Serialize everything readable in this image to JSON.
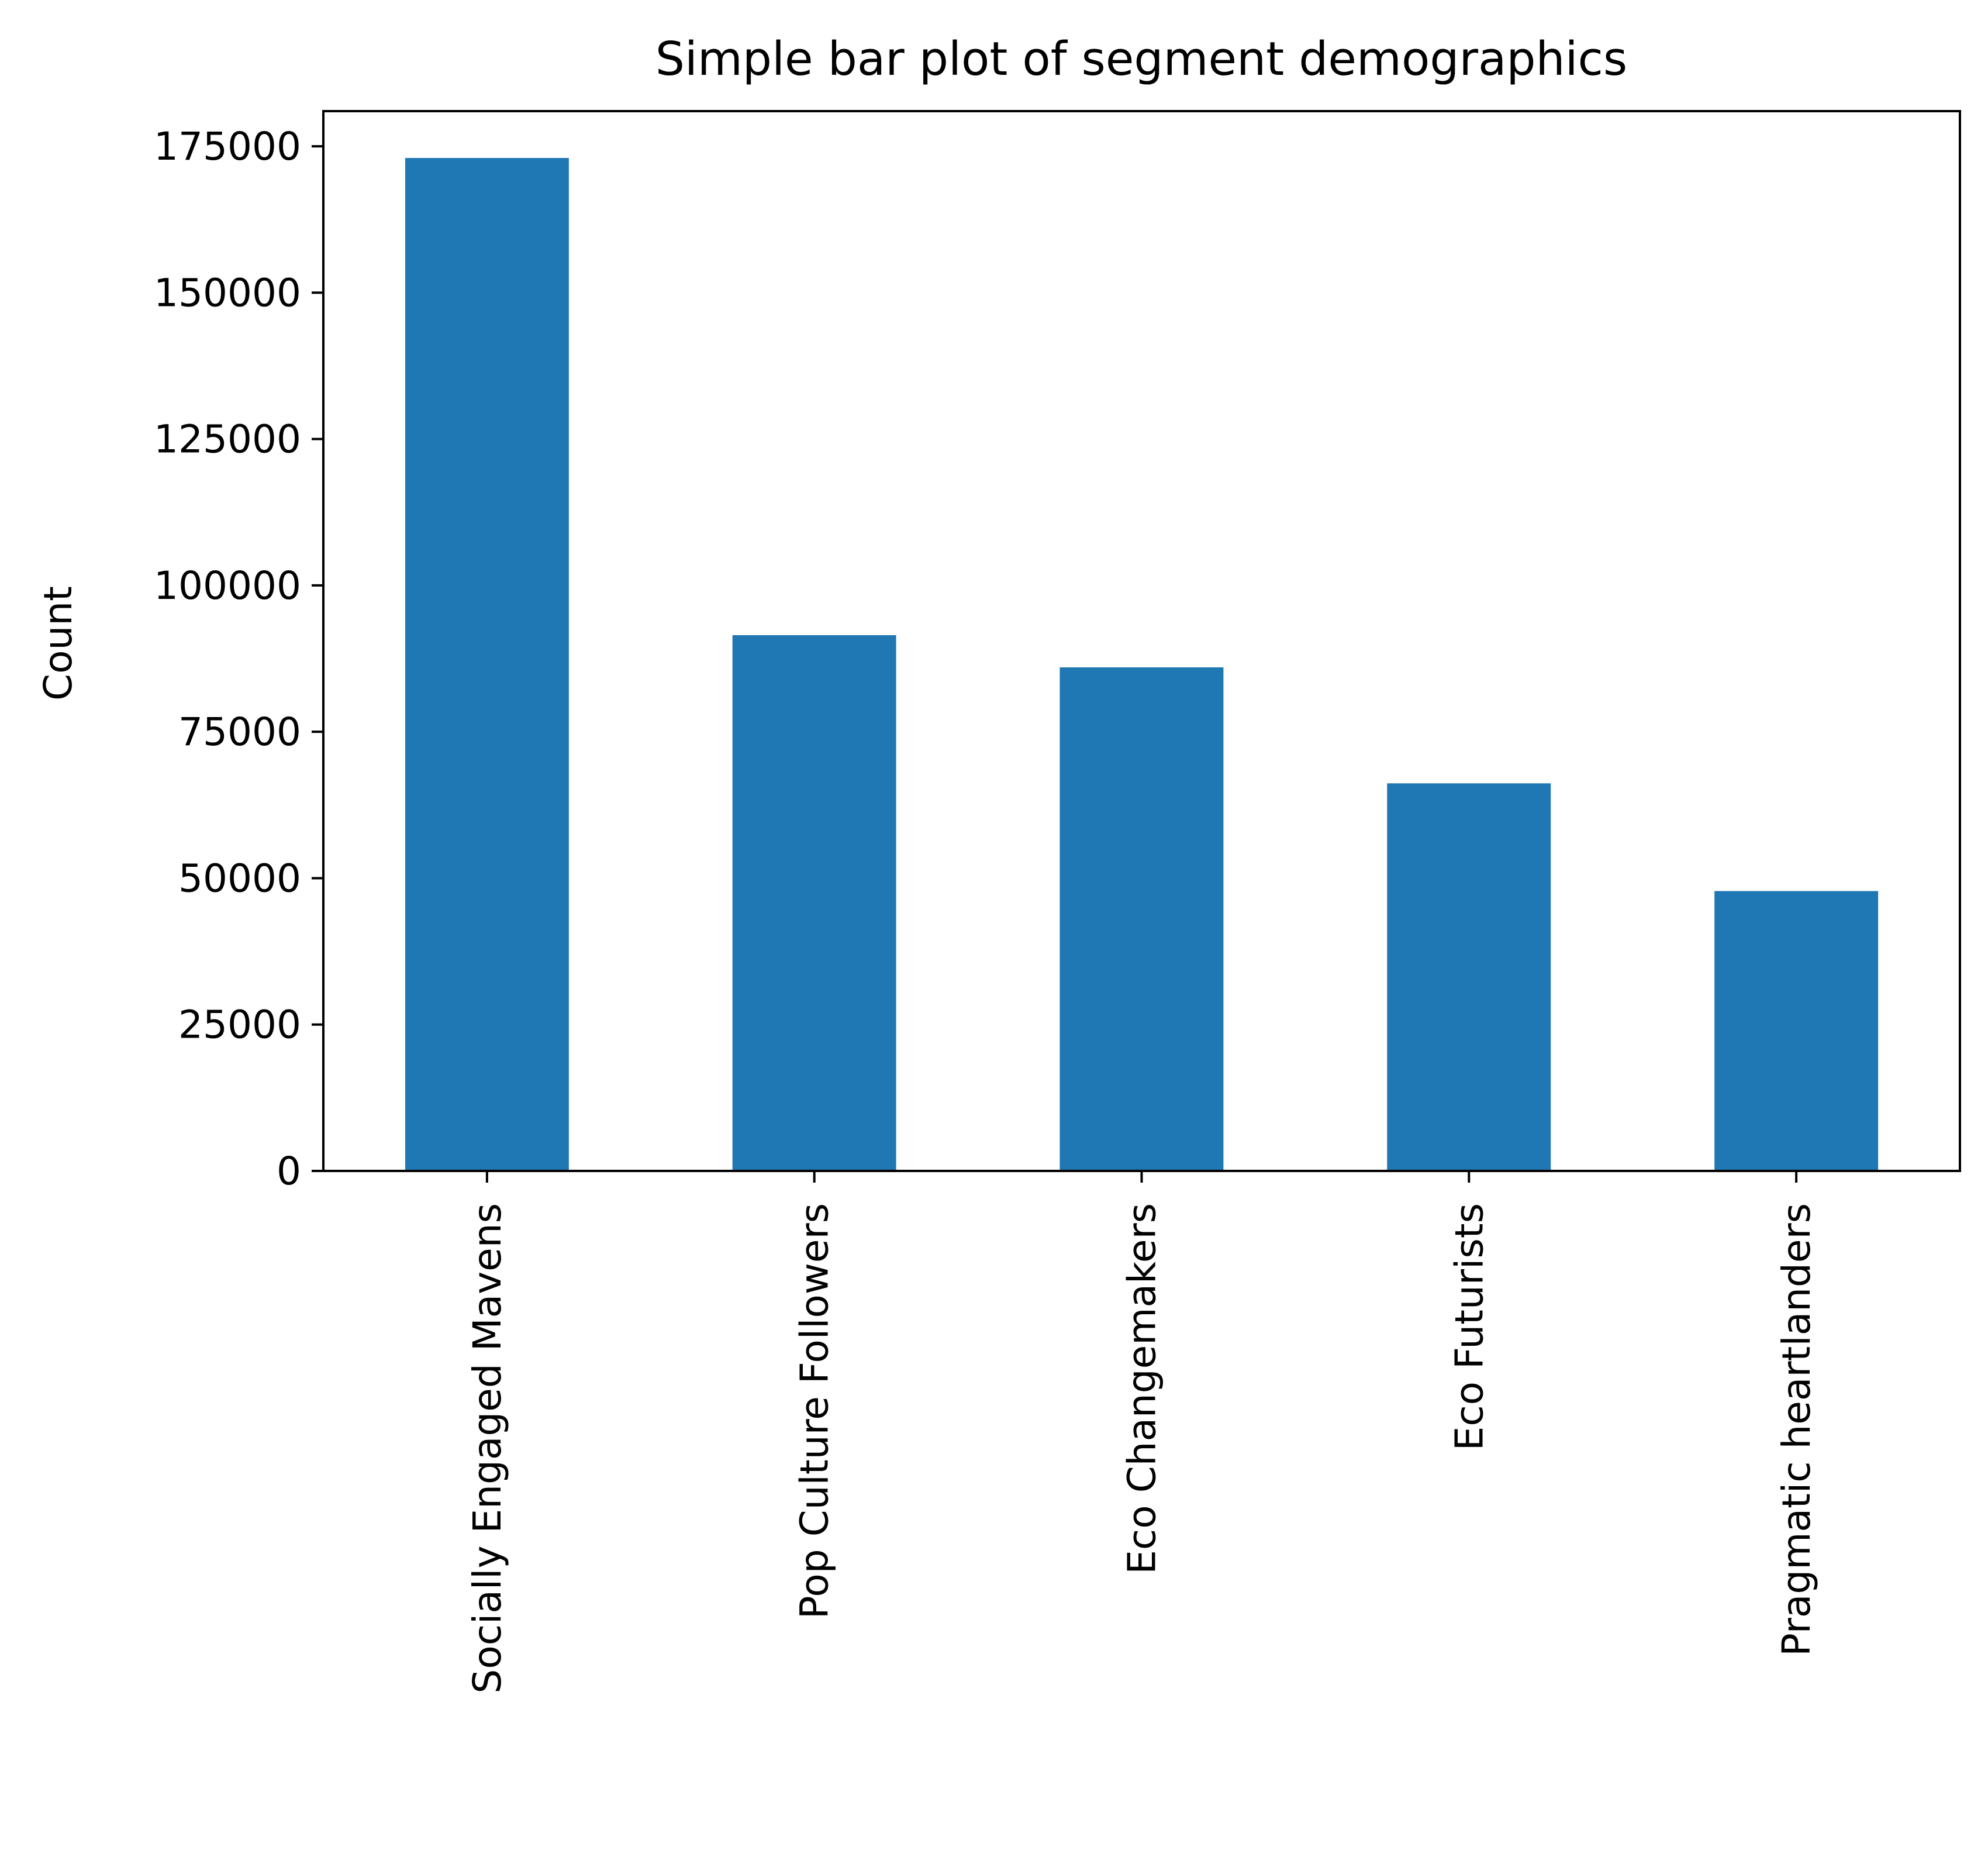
{
  "chart_data": {
    "type": "bar",
    "title": "Simple bar plot of segment demographics",
    "xlabel": "",
    "ylabel": "Count",
    "categories": [
      "Socially Engaged Mavens",
      "Pop Culture Followers",
      "Eco Changemakers",
      "Eco Futurists",
      "Pragmatic heartlanders"
    ],
    "values": [
      173000,
      91500,
      86000,
      66200,
      47800
    ],
    "ylim": [
      0,
      181000
    ],
    "yticks": [
      0,
      25000,
      50000,
      75000,
      100000,
      125000,
      150000,
      175000
    ],
    "bar_color": "#1f77b4",
    "grid": false,
    "legend": "none"
  }
}
